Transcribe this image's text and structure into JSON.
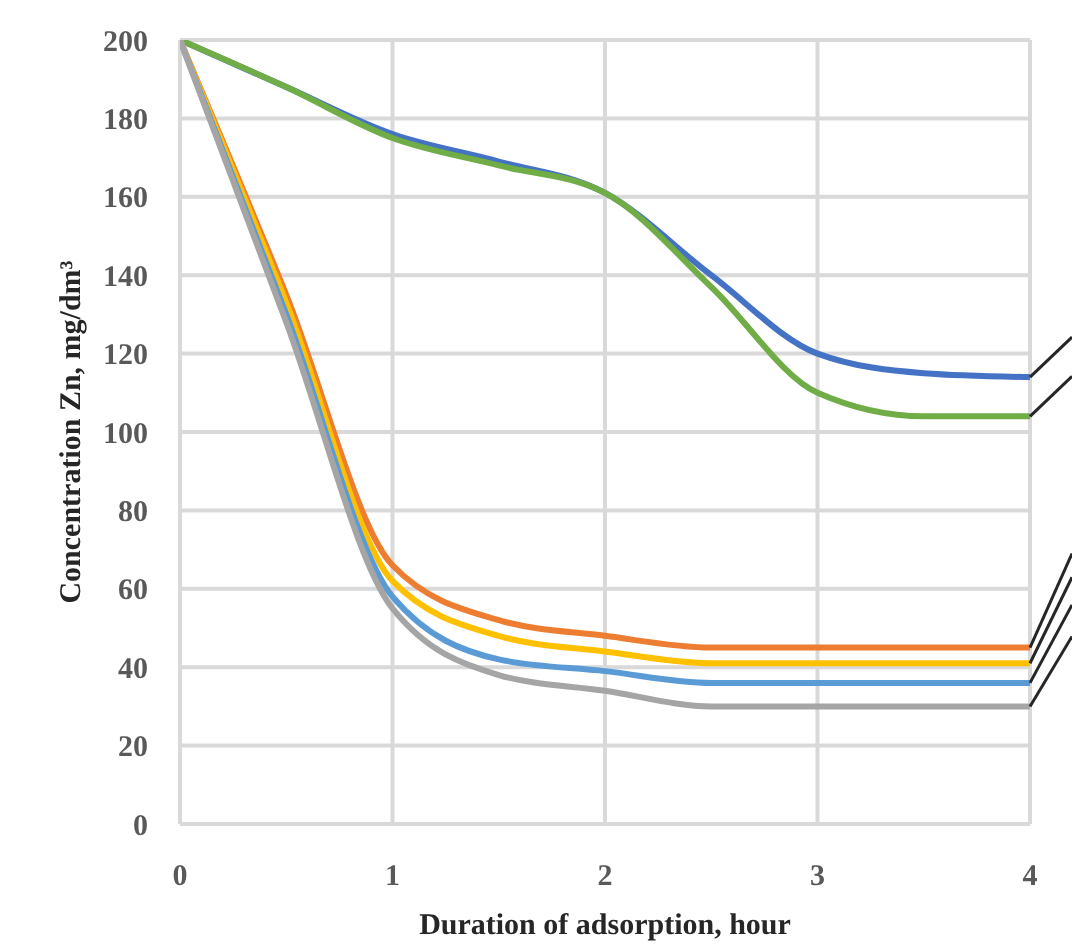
{
  "chart_data": {
    "type": "line",
    "xlabel": "Duration of adsorption, hour",
    "ylabel": "Concentration Zn, mg/dm³",
    "x": [
      0,
      0.5,
      1,
      1.5,
      2,
      2.5,
      3,
      3.5,
      4
    ],
    "series": [
      {
        "color": "#4472c4",
        "values": [
          200,
          188,
          176,
          169,
          161,
          140,
          120,
          115,
          114
        ]
      },
      {
        "color": "#70ad47",
        "values": [
          200,
          188,
          175,
          168,
          161,
          137,
          110,
          104,
          104
        ]
      },
      {
        "color": "#ed7d31",
        "values": [
          200,
          135,
          66,
          52,
          48,
          45,
          45,
          45,
          45
        ]
      },
      {
        "color": "#ffc000",
        "values": [
          200,
          133,
          62,
          48,
          44,
          41,
          41,
          41,
          41
        ]
      },
      {
        "color": "#5b9bd5",
        "values": [
          200,
          130,
          58,
          42,
          39,
          36,
          36,
          36,
          36
        ]
      },
      {
        "color": "#a5a5a5",
        "values": [
          200,
          128,
          55,
          38,
          34,
          30,
          30,
          30,
          30
        ]
      }
    ],
    "xlim": [
      0,
      4
    ],
    "xticks": [
      0,
      1,
      2,
      3,
      4
    ],
    "ylim": [
      0,
      200
    ],
    "yticks": [
      0,
      20,
      40,
      60,
      80,
      100,
      120,
      140,
      160,
      180,
      200
    ],
    "grid": true,
    "legend": false,
    "marker": "none",
    "line_style": "solid"
  }
}
